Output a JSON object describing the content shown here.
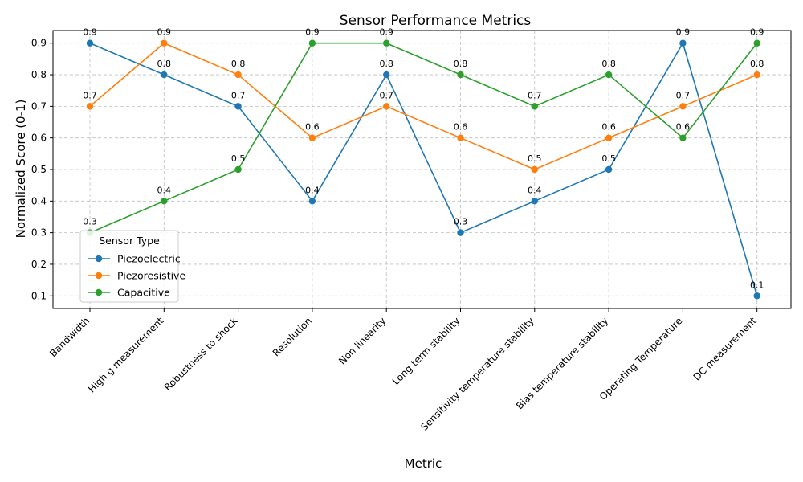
{
  "chart_data": {
    "type": "line",
    "title": "Sensor Performance Metrics",
    "xlabel": "Metric",
    "ylabel": "Normalized Score (0-1)",
    "categories": [
      "Bandwidth",
      "High g measurement",
      "Robustness to shock",
      "Resolution",
      "Non linearity",
      "Long term stability",
      "Sensitivity temperature stability",
      "Bias temperature stability",
      "Operating Temperature",
      "DC measurement"
    ],
    "series": [
      {
        "name": "Piezoelectric",
        "color": "#1f77b4",
        "values": [
          0.9,
          0.8,
          0.7,
          0.4,
          0.8,
          0.3,
          0.4,
          0.5,
          0.9,
          0.1
        ]
      },
      {
        "name": "Piezoresistive",
        "color": "#ff7f0e",
        "values": [
          0.7,
          0.9,
          0.8,
          0.6,
          0.7,
          0.6,
          0.5,
          0.6,
          0.7,
          0.8
        ]
      },
      {
        "name": "Capacitive",
        "color": "#2ca02c",
        "values": [
          0.3,
          0.4,
          0.5,
          0.9,
          0.9,
          0.8,
          0.7,
          0.8,
          0.6,
          0.9
        ]
      }
    ],
    "yticks": [
      "0.1",
      "0.2",
      "0.3",
      "0.4",
      "0.5",
      "0.6",
      "0.7",
      "0.8",
      "0.9"
    ],
    "ylim": [
      0.06,
      0.94
    ],
    "grid": true,
    "legend": {
      "title": "Sensor Type",
      "placement": "lower-left"
    }
  }
}
